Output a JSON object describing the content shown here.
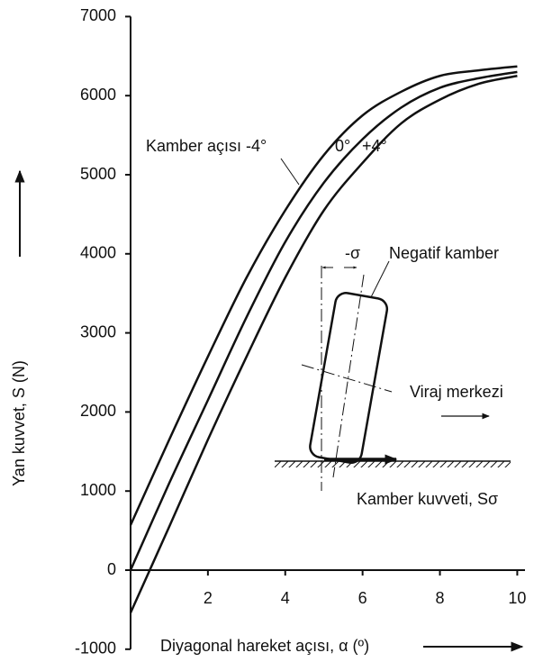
{
  "chart_data": {
    "type": "line",
    "y_label": "Yan kuvvet, S (N)",
    "x_label": "Diyagonal hareket açısı, α (º)",
    "x": [
      0,
      1,
      2,
      3,
      4,
      5,
      6,
      7,
      8,
      9,
      10
    ],
    "series": [
      {
        "name": "Kamber açısı -4°",
        "color": "#111111",
        "values": [
          570,
          1650,
          2700,
          3700,
          4550,
          5250,
          5750,
          6050,
          6250,
          6320,
          6370
        ]
      },
      {
        "name": "0°",
        "color": "#111111",
        "values": [
          0,
          1100,
          2150,
          3200,
          4150,
          4900,
          5450,
          5850,
          6100,
          6220,
          6300
        ]
      },
      {
        "name": "+4°",
        "color": "#111111",
        "values": [
          -540,
          550,
          1650,
          2700,
          3700,
          4550,
          5150,
          5650,
          5950,
          6150,
          6250
        ]
      }
    ],
    "xlim": [
      0,
      10.2
    ],
    "ylim": [
      -1000,
      7000
    ],
    "xticks": [
      2,
      4,
      6,
      8,
      10
    ],
    "yticks": [
      -1000,
      0,
      1000,
      2000,
      3000,
      4000,
      5000,
      6000,
      7000
    ],
    "annotations": [
      "-σ",
      "Negatif kamber",
      "Viraj merkezi",
      "Kamber kuvveti, Sσ"
    ]
  }
}
